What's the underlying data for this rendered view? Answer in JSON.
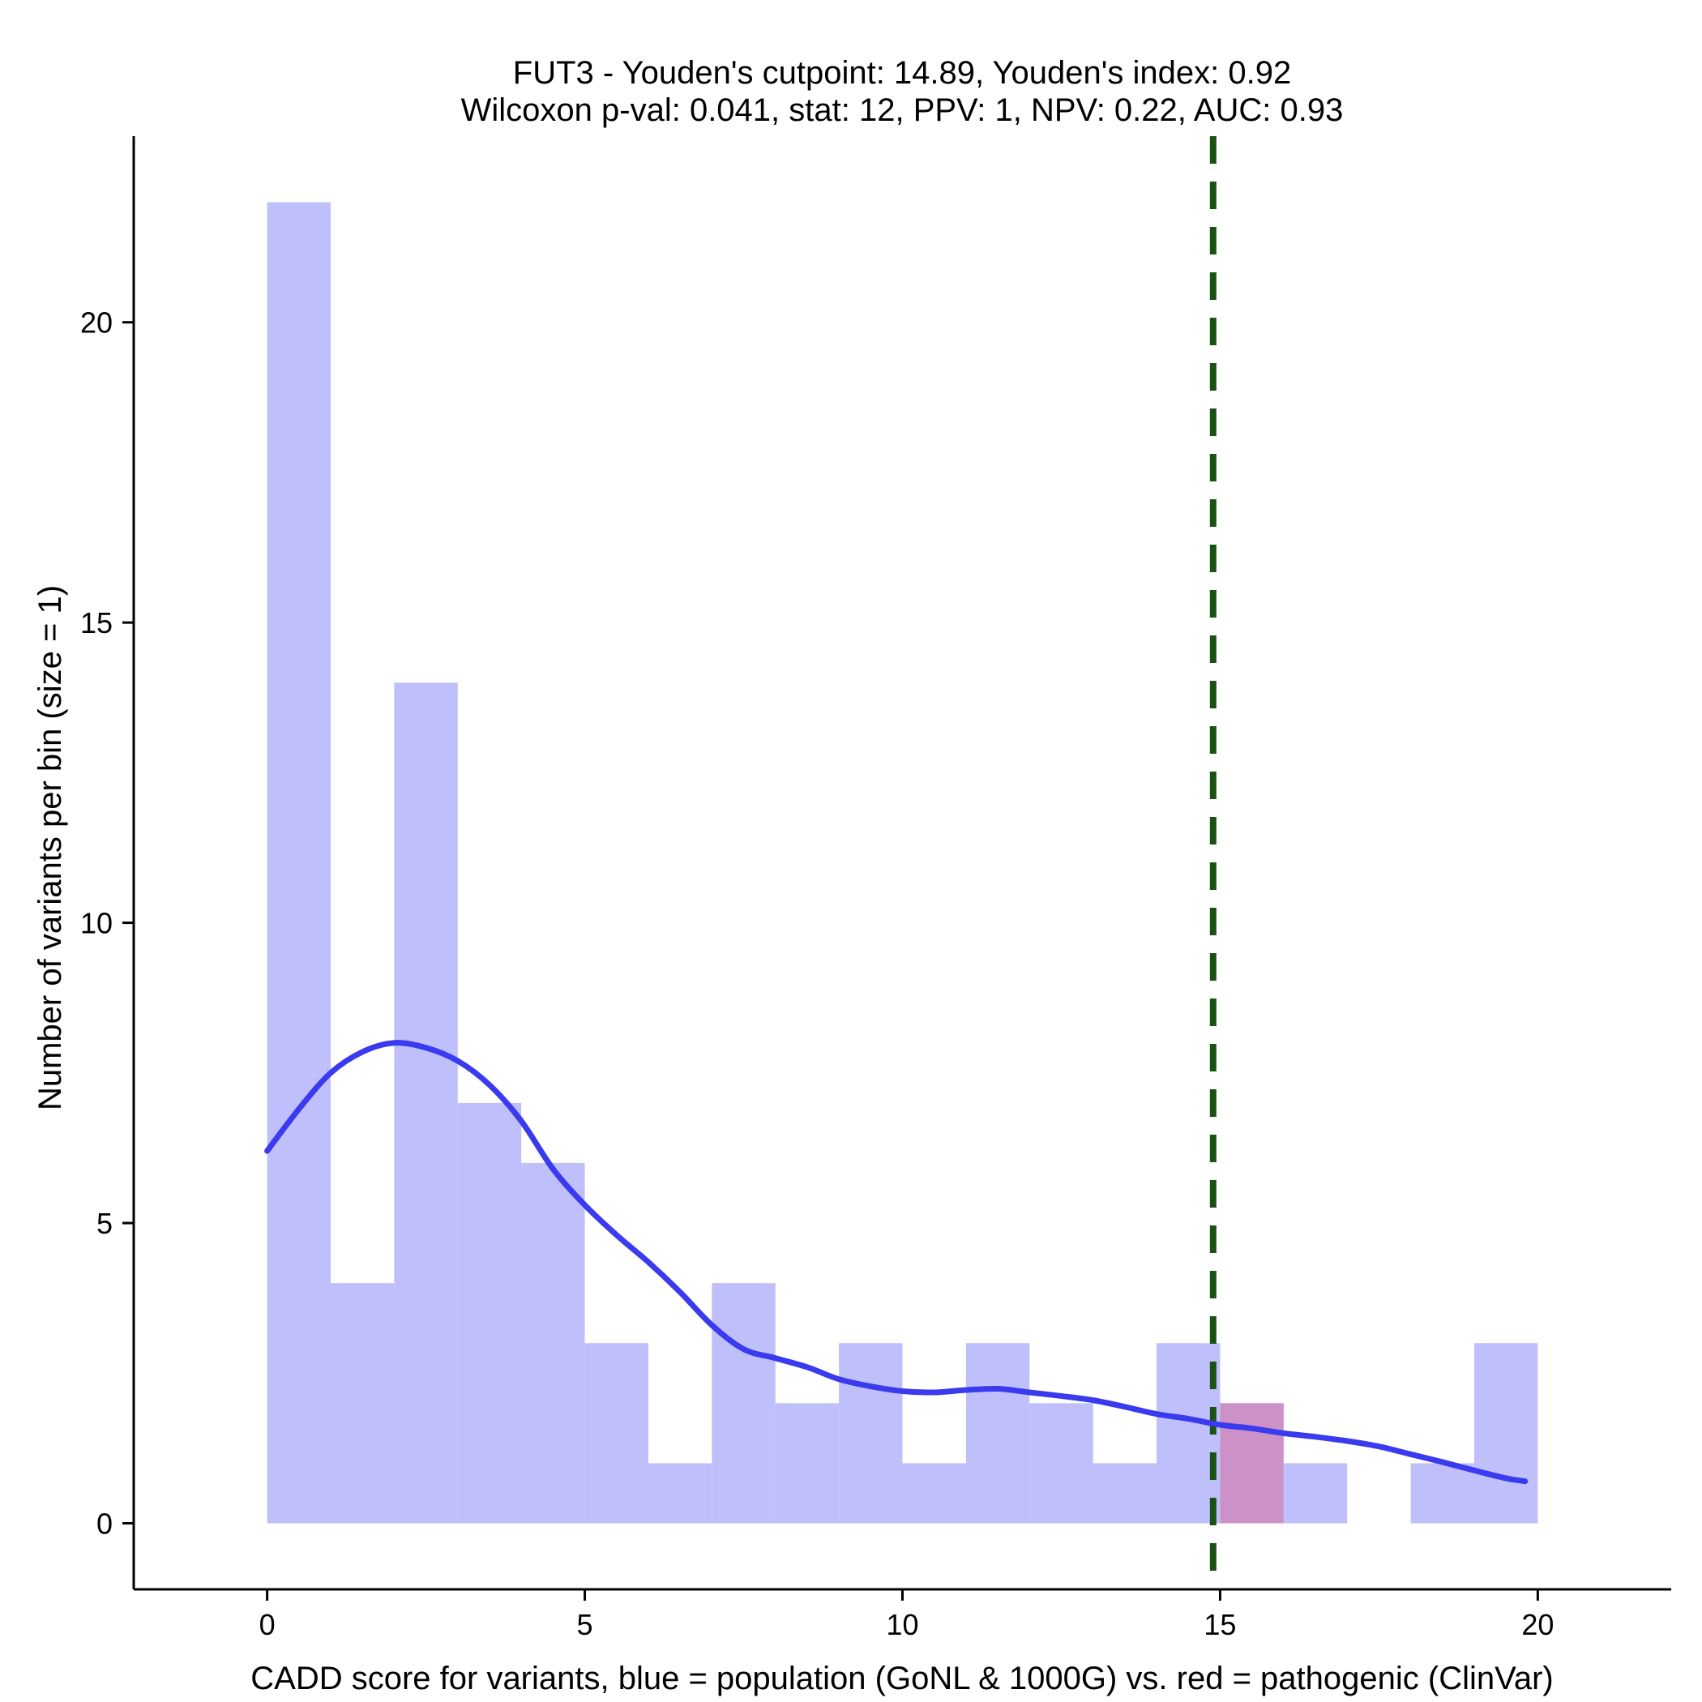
{
  "chart_data": {
    "type": "bar",
    "title": [
      "FUT3 - Youden's cutpoint: 14.89, Youden's index: 0.92",
      "Wilcoxon p-val: 0.041, stat: 12, PPV: 1, NPV: 0.22, AUC: 0.93"
    ],
    "xlabel": "CADD score for variants, blue = population (GoNL & 1000G) vs. red = pathogenic (ClinVar)",
    "ylabel": "Number of variants per bin (size = 1)",
    "xlim": [
      -2.1,
      22.1
    ],
    "ylim": [
      -1.1,
      23.1
    ],
    "x_ticks": [
      0,
      5,
      10,
      15,
      20
    ],
    "y_ticks": [
      0,
      5,
      10,
      15,
      20
    ],
    "bin_width": 1,
    "series": [
      {
        "name": "population (GoNL & 1000G)",
        "color": "#bfbffb",
        "bin_starts": [
          0,
          1,
          2,
          3,
          4,
          5,
          6,
          7,
          8,
          9,
          10,
          11,
          12,
          13,
          14,
          15,
          16,
          17,
          18,
          19
        ],
        "values": [
          22,
          4,
          14,
          7,
          6,
          3,
          1,
          4,
          2,
          3,
          1,
          3,
          2,
          1,
          3,
          0,
          1,
          0,
          1,
          3
        ]
      },
      {
        "name": "pathogenic (ClinVar)",
        "color": "#cc91c6",
        "bin_starts": [
          15
        ],
        "values": [
          2
        ]
      }
    ],
    "density_curve": {
      "color": "#3a3aef",
      "x": [
        0,
        0.5,
        1,
        1.5,
        2,
        2.5,
        3,
        3.5,
        4,
        4.5,
        5,
        5.5,
        6,
        6.5,
        7,
        7.5,
        8,
        8.5,
        9,
        9.5,
        10,
        10.5,
        11,
        11.5,
        12,
        12.5,
        13,
        13.5,
        14,
        14.5,
        15,
        15.5,
        16,
        16.5,
        17,
        17.5,
        18,
        18.5,
        19,
        19.5,
        19.8
      ],
      "y": [
        6.2,
        6.9,
        7.5,
        7.85,
        8.0,
        7.92,
        7.7,
        7.3,
        6.7,
        5.9,
        5.3,
        4.8,
        4.35,
        3.85,
        3.3,
        2.9,
        2.75,
        2.6,
        2.4,
        2.28,
        2.2,
        2.18,
        2.22,
        2.24,
        2.18,
        2.12,
        2.05,
        1.94,
        1.82,
        1.74,
        1.64,
        1.58,
        1.5,
        1.44,
        1.37,
        1.28,
        1.15,
        1.02,
        0.88,
        0.75,
        0.7
      ]
    },
    "cutpoint": {
      "x": 14.89,
      "color": "#1a5214",
      "style": "dashed"
    },
    "grid": false,
    "legend": "none"
  }
}
